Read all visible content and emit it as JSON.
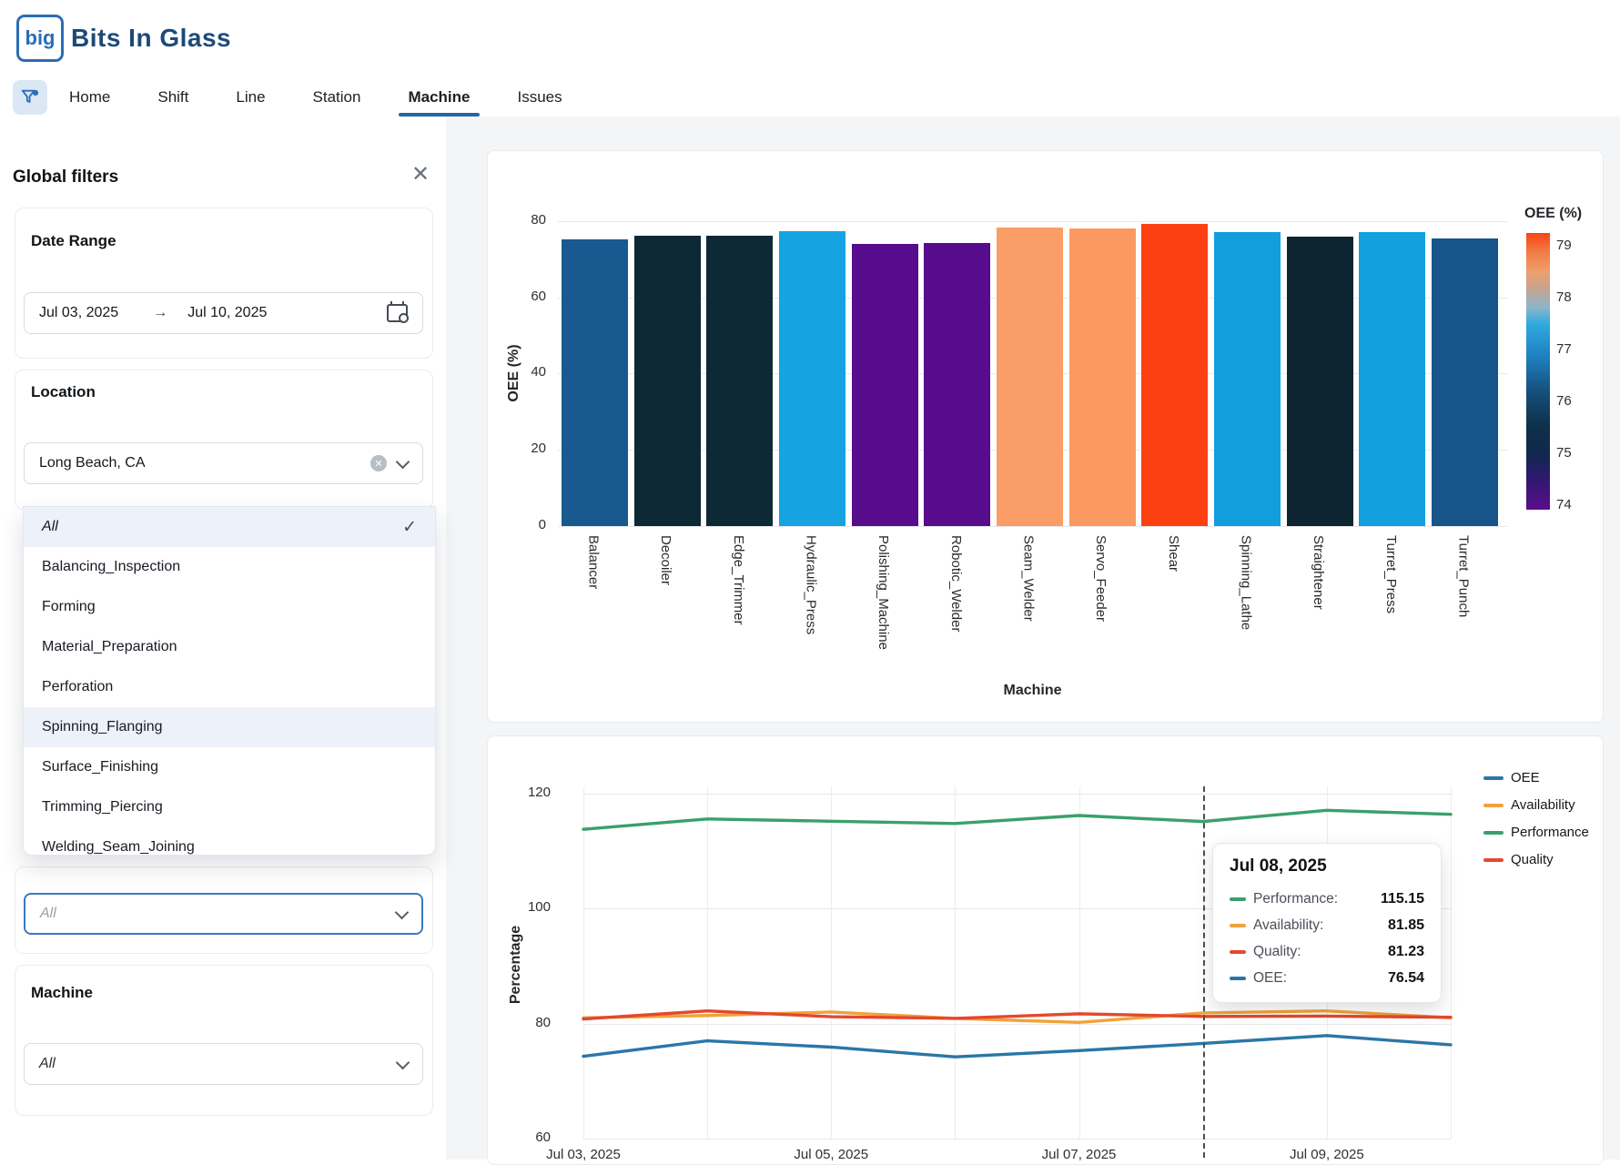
{
  "brand": {
    "logo_text": "big",
    "name": "Bits In Glass"
  },
  "nav": {
    "tabs": [
      {
        "label": "Home",
        "active": false
      },
      {
        "label": "Shift",
        "active": false
      },
      {
        "label": "Line",
        "active": false
      },
      {
        "label": "Station",
        "active": false
      },
      {
        "label": "Machine",
        "active": true
      },
      {
        "label": "Issues",
        "active": false
      }
    ]
  },
  "filters": {
    "title": "Global filters",
    "date_range": {
      "label": "Date Range",
      "start": "Jul 03, 2025",
      "arrow": "→",
      "end": "Jul 10, 2025"
    },
    "location": {
      "label": "Location",
      "value": "Long Beach, CA"
    },
    "process_dropdown": {
      "options": [
        {
          "label": "All",
          "italic": true,
          "checked": true,
          "highlight": true
        },
        {
          "label": "Balancing_Inspection"
        },
        {
          "label": "Forming"
        },
        {
          "label": "Material_Preparation"
        },
        {
          "label": "Perforation"
        },
        {
          "label": "Spinning_Flanging",
          "highlight": true
        },
        {
          "label": "Surface_Finishing"
        },
        {
          "label": "Trimming_Piercing"
        },
        {
          "label": "Welding_Seam_Joining"
        }
      ],
      "input_value": "All"
    },
    "machine": {
      "label": "Machine",
      "value": "All"
    }
  },
  "chart_data": [
    {
      "type": "bar",
      "xlabel": "Machine",
      "ylabel": "OEE (%)",
      "ylim": [
        0,
        80
      ],
      "yticks": [
        0,
        20,
        40,
        60,
        80
      ],
      "grid": true,
      "categories": [
        "Balancer",
        "Decoiler",
        "Edge_Trimmer",
        "Hydraulic_Press",
        "Polishing_Machine",
        "Robotic_Welder",
        "Seam_Welder",
        "Servo_Feeder",
        "Shear",
        "Spinning_Lathe",
        "Straightener",
        "Turret_Press",
        "Turret_Punch"
      ],
      "values": [
        75.1,
        76.2,
        76.1,
        77.3,
        74.1,
        74.2,
        78.2,
        78.1,
        79.3,
        77.1,
        76.0,
        77.0,
        75.3
      ],
      "bar_colors": [
        "#185a90",
        "#0d2936",
        "#0d2936",
        "#16a3e1",
        "#560c8c",
        "#560c8c",
        "#fb9d66",
        "#fb9a60",
        "#fb4111",
        "#129edd",
        "#0c2531",
        "#12a0de",
        "#17548a"
      ],
      "colorbar": {
        "title": "OEE (%)",
        "ticks": [
          79,
          78,
          77,
          76,
          75,
          74
        ],
        "min": 74,
        "max": 79.4,
        "gradient": [
          [
            "0%",
            "#fa4312"
          ],
          [
            "6%",
            "#f2763f"
          ],
          [
            "14%",
            "#eda06c"
          ],
          [
            "20%",
            "#c6a291"
          ],
          [
            "27%",
            "#8ab6c9"
          ],
          [
            "33%",
            "#2fa9e0"
          ],
          [
            "45%",
            "#1f7fc0"
          ],
          [
            "57%",
            "#16517d"
          ],
          [
            "70%",
            "#0e3048"
          ],
          [
            "80%",
            "#11284f"
          ],
          [
            "88%",
            "#2c1a6d"
          ],
          [
            "100%",
            "#5a0d8e"
          ]
        ]
      }
    },
    {
      "type": "line",
      "ylabel": "Percentage",
      "ylim": [
        60,
        122
      ],
      "yticks": [
        120,
        100,
        80,
        60
      ],
      "grid": true,
      "legend_position": "top-right",
      "x": [
        "Jul 03, 2025",
        "Jul 04, 2025",
        "Jul 05, 2025",
        "Jul 06, 2025",
        "Jul 07, 2025",
        "Jul 08, 2025",
        "Jul 09, 2025",
        "Jul 10, 2025"
      ],
      "xtick_labels_shown": [
        "Jul 03, 2025",
        "Jul 05, 2025",
        "Jul 07, 2025",
        "Jul 09, 2025"
      ],
      "series": [
        {
          "name": "OEE",
          "color": "#2a76a8",
          "values": [
            74.3,
            77.0,
            75.9,
            74.2,
            75.3,
            76.54,
            77.9,
            76.3
          ]
        },
        {
          "name": "Availability",
          "color": "#f0a23b",
          "values": [
            81.0,
            81.4,
            82.0,
            80.9,
            80.2,
            81.85,
            82.2,
            81.0
          ]
        },
        {
          "name": "Performance",
          "color": "#3aa06b",
          "values": [
            113.8,
            115.6,
            115.2,
            114.8,
            116.2,
            115.15,
            117.1,
            116.4
          ]
        },
        {
          "name": "Quality",
          "color": "#e3492d",
          "values": [
            80.8,
            82.2,
            81.2,
            80.9,
            81.7,
            81.23,
            81.3,
            81.1
          ]
        }
      ],
      "hover": {
        "date": "Jul 08, 2025",
        "x_index": 5,
        "rows": [
          {
            "name": "Performance",
            "value": "115.15",
            "color": "#3aa06b"
          },
          {
            "name": "Availability",
            "value": "81.85",
            "color": "#f0a23b"
          },
          {
            "name": "Quality",
            "value": "81.23",
            "color": "#e3492d"
          },
          {
            "name": "OEE",
            "value": "76.54",
            "color": "#2a76a8"
          }
        ]
      }
    }
  ]
}
